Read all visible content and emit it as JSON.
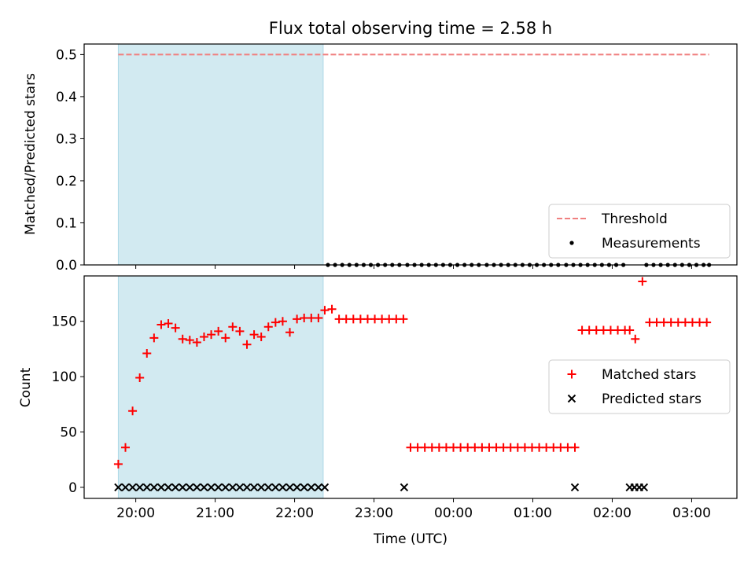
{
  "chart_data": {
    "title": "Flux total observing time = 2.58 h",
    "xlabel": "Time (UTC)",
    "x_unit": "hours (UTC, values ≥ 24 are after midnight)",
    "xlim": [
      19.35,
      27.57
    ],
    "x_ticks": [
      {
        "value": 20,
        "label": "20:00"
      },
      {
        "value": 21,
        "label": "21:00"
      },
      {
        "value": 22,
        "label": "22:00"
      },
      {
        "value": 23,
        "label": "23:00"
      },
      {
        "value": 24,
        "label": "00:00"
      },
      {
        "value": 25,
        "label": "01:00"
      },
      {
        "value": 26,
        "label": "02:00"
      },
      {
        "value": 27,
        "label": "03:00"
      }
    ],
    "highlight_span": {
      "x_start": 19.78,
      "x_end": 22.36,
      "color": "#add8e6"
    },
    "panels": [
      {
        "type": "line+scatter",
        "ylabel": "Matched/Predicted stars",
        "ylim": [
          0,
          0.525
        ],
        "y_ticks": [
          0,
          0.1,
          0.2,
          0.3,
          0.4,
          0.5
        ],
        "y_tick_labels": [
          "0.0",
          "0.1",
          "0.2",
          "0.3",
          "0.4",
          "0.5"
        ],
        "legend": "lower right",
        "series": [
          {
            "name": "Threshold",
            "kind": "dashed-line",
            "color": "#f08080",
            "x": [
              19.78,
              27.22
            ],
            "y": [
              0.5,
              0.5
            ]
          },
          {
            "name": "Measurements",
            "kind": "dot",
            "color": "#000000",
            "x": [
              22.42,
              22.51,
              22.6,
              22.69,
              22.78,
              22.87,
              22.96,
              23.05,
              23.14,
              23.23,
              23.32,
              23.42,
              23.51,
              23.6,
              23.69,
              23.78,
              23.87,
              23.96,
              24.05,
              24.14,
              24.23,
              24.32,
              24.42,
              24.51,
              24.6,
              24.69,
              24.78,
              24.87,
              24.96,
              25.05,
              25.14,
              25.23,
              25.32,
              25.42,
              25.51,
              25.6,
              25.69,
              25.78,
              25.87,
              25.96,
              26.05,
              26.14,
              26.43,
              26.52,
              26.61,
              26.7,
              26.79,
              26.88,
              26.97,
              27.06,
              27.15,
              27.22
            ],
            "y": [
              0,
              0,
              0,
              0,
              0,
              0,
              0,
              0,
              0,
              0,
              0,
              0,
              0,
              0,
              0,
              0,
              0,
              0,
              0,
              0,
              0,
              0,
              0,
              0,
              0,
              0,
              0,
              0,
              0,
              0,
              0,
              0,
              0,
              0,
              0,
              0,
              0,
              0,
              0,
              0,
              0,
              0,
              0,
              0,
              0,
              0,
              0,
              0,
              0,
              0,
              0,
              0
            ]
          }
        ]
      },
      {
        "type": "scatter",
        "ylabel": "Count",
        "ylim": [
          -10,
          191
        ],
        "y_ticks": [
          0,
          50,
          100,
          150
        ],
        "y_tick_labels": [
          "0",
          "50",
          "100",
          "150"
        ],
        "legend": "center right",
        "series": [
          {
            "name": "Matched stars",
            "marker": "+",
            "color": "#ff0000",
            "x": [
              19.78,
              19.87,
              19.96,
              20.05,
              20.14,
              20.23,
              20.32,
              20.41,
              20.5,
              20.59,
              20.68,
              20.77,
              20.86,
              20.95,
              21.04,
              21.13,
              21.22,
              21.31,
              21.4,
              21.49,
              21.58,
              21.67,
              21.76,
              21.85,
              21.94,
              22.03,
              22.12,
              22.21,
              22.3,
              22.38,
              22.47,
              22.56,
              22.65,
              22.74,
              22.83,
              22.92,
              23.01,
              23.1,
              23.19,
              23.28,
              23.37,
              23.46,
              23.55,
              23.64,
              23.73,
              23.82,
              23.91,
              24.0,
              24.09,
              24.18,
              24.27,
              24.36,
              24.45,
              24.54,
              24.63,
              24.72,
              24.81,
              24.9,
              24.99,
              25.08,
              25.17,
              25.26,
              25.35,
              25.44,
              25.53,
              25.62,
              25.71,
              25.8,
              25.89,
              25.98,
              26.07,
              26.16,
              26.22,
              26.29,
              26.38,
              26.47,
              26.56,
              26.65,
              26.74,
              26.83,
              26.92,
              27.01,
              27.1,
              27.19
            ],
            "y": [
              21,
              36,
              69,
              99,
              121,
              135,
              147,
              148,
              144,
              134,
              133,
              131,
              136,
              138,
              141,
              135,
              145,
              141,
              129,
              138,
              136,
              145,
              149,
              150,
              140,
              152,
              153,
              153,
              153,
              160,
              161,
              152,
              152,
              152,
              152,
              152,
              152,
              152,
              152,
              152,
              152,
              36,
              36,
              36,
              36,
              36,
              36,
              36,
              36,
              36,
              36,
              36,
              36,
              36,
              36,
              36,
              36,
              36,
              36,
              36,
              36,
              36,
              36,
              36,
              36,
              142,
              142,
              142,
              142,
              142,
              142,
              142,
              142,
              134,
              186,
              149,
              149,
              149,
              149,
              149,
              149,
              149,
              149,
              149
            ]
          },
          {
            "name": "Predicted stars",
            "marker": "x",
            "color": "#000000",
            "x": [
              19.78,
              19.87,
              19.96,
              20.05,
              20.14,
              20.23,
              20.32,
              20.41,
              20.5,
              20.59,
              20.68,
              20.77,
              20.86,
              20.95,
              21.04,
              21.13,
              21.22,
              21.31,
              21.4,
              21.49,
              21.58,
              21.67,
              21.76,
              21.85,
              21.94,
              22.03,
              22.12,
              22.21,
              22.3,
              22.38,
              23.38,
              25.53,
              26.22,
              26.28,
              26.34,
              26.4
            ],
            "y": [
              0,
              0,
              0,
              0,
              0,
              0,
              0,
              0,
              0,
              0,
              0,
              0,
              0,
              0,
              0,
              0,
              0,
              0,
              0,
              0,
              0,
              0,
              0,
              0,
              0,
              0,
              0,
              0,
              0,
              0,
              0,
              0,
              0,
              0,
              0,
              0
            ]
          }
        ]
      }
    ]
  }
}
